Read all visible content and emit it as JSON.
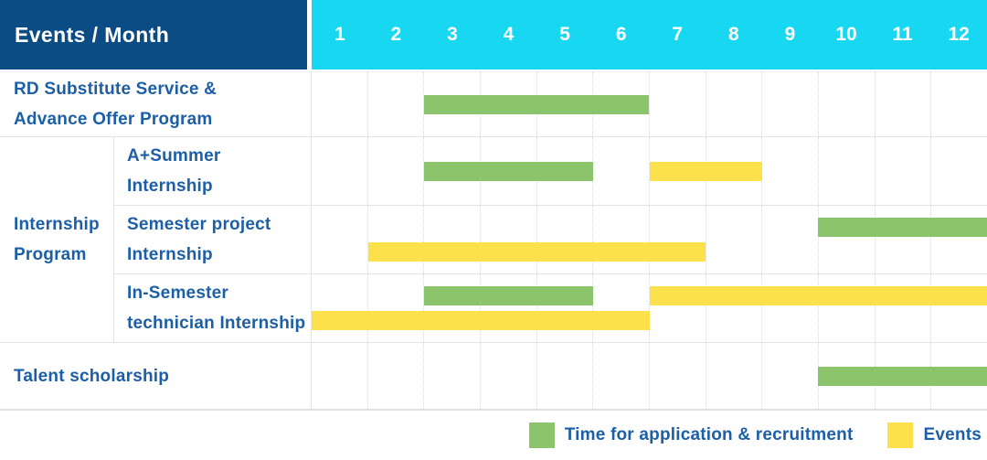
{
  "colors": {
    "header_navy": "#0C4C85",
    "header_cyan": "#17D8F0",
    "application_green": "#8BC46B",
    "event_yellow": "#FDE14A",
    "label_blue": "#1D5FA6"
  },
  "header": {
    "title": "Events / Month",
    "months": [
      "1",
      "2",
      "3",
      "4",
      "5",
      "6",
      "7",
      "8",
      "9",
      "10",
      "11",
      "12"
    ]
  },
  "legend": {
    "application_label": "Time for application & recruitment",
    "events_label": "Events"
  },
  "chart_data": {
    "type": "bar",
    "variant": "gantt",
    "x_unit": "month",
    "x_ticks": [
      1,
      2,
      3,
      4,
      5,
      6,
      7,
      8,
      9,
      10,
      11,
      12
    ],
    "xlim": [
      1,
      12
    ],
    "grid": "dotted-vertical-month-separators",
    "legend_position": "bottom-right",
    "series_legend": [
      "Time for application & recruitment",
      "Events"
    ],
    "rows": [
      {
        "group": null,
        "label": "RD Substitute Service &\nAdvance Offer Program",
        "bars": [
          {
            "series": "Time for application & recruitment",
            "start_month": 3,
            "end_month": 6,
            "track": "center"
          }
        ]
      },
      {
        "group": "Internship\nProgram",
        "label": "A+Summer\nInternship",
        "bars": [
          {
            "series": "Time for application & recruitment",
            "start_month": 3,
            "end_month": 5,
            "track": "center"
          },
          {
            "series": "Events",
            "start_month": 7,
            "end_month": 8,
            "track": "center"
          }
        ]
      },
      {
        "group": "Internship\nProgram",
        "label": "Semester project\nInternship",
        "bars": [
          {
            "series": "Time for application & recruitment",
            "start_month": 10,
            "end_month": 12,
            "track": "top"
          },
          {
            "series": "Events",
            "start_month": 2,
            "end_month": 7,
            "track": "bottom"
          }
        ]
      },
      {
        "group": "Internship\nProgram",
        "label": "In-Semester\ntechnician Internship",
        "bars": [
          {
            "series": "Time for application & recruitment",
            "start_month": 3,
            "end_month": 5,
            "track": "top"
          },
          {
            "series": "Events",
            "start_month": 7,
            "end_month": 12,
            "track": "top"
          },
          {
            "series": "Events",
            "start_month": 1,
            "end_month": 6,
            "track": "bottom"
          }
        ]
      },
      {
        "group": null,
        "label": "Talent scholarship",
        "bars": [
          {
            "series": "Time for application & recruitment",
            "start_month": 10,
            "end_month": 12,
            "track": "center"
          }
        ]
      }
    ]
  }
}
